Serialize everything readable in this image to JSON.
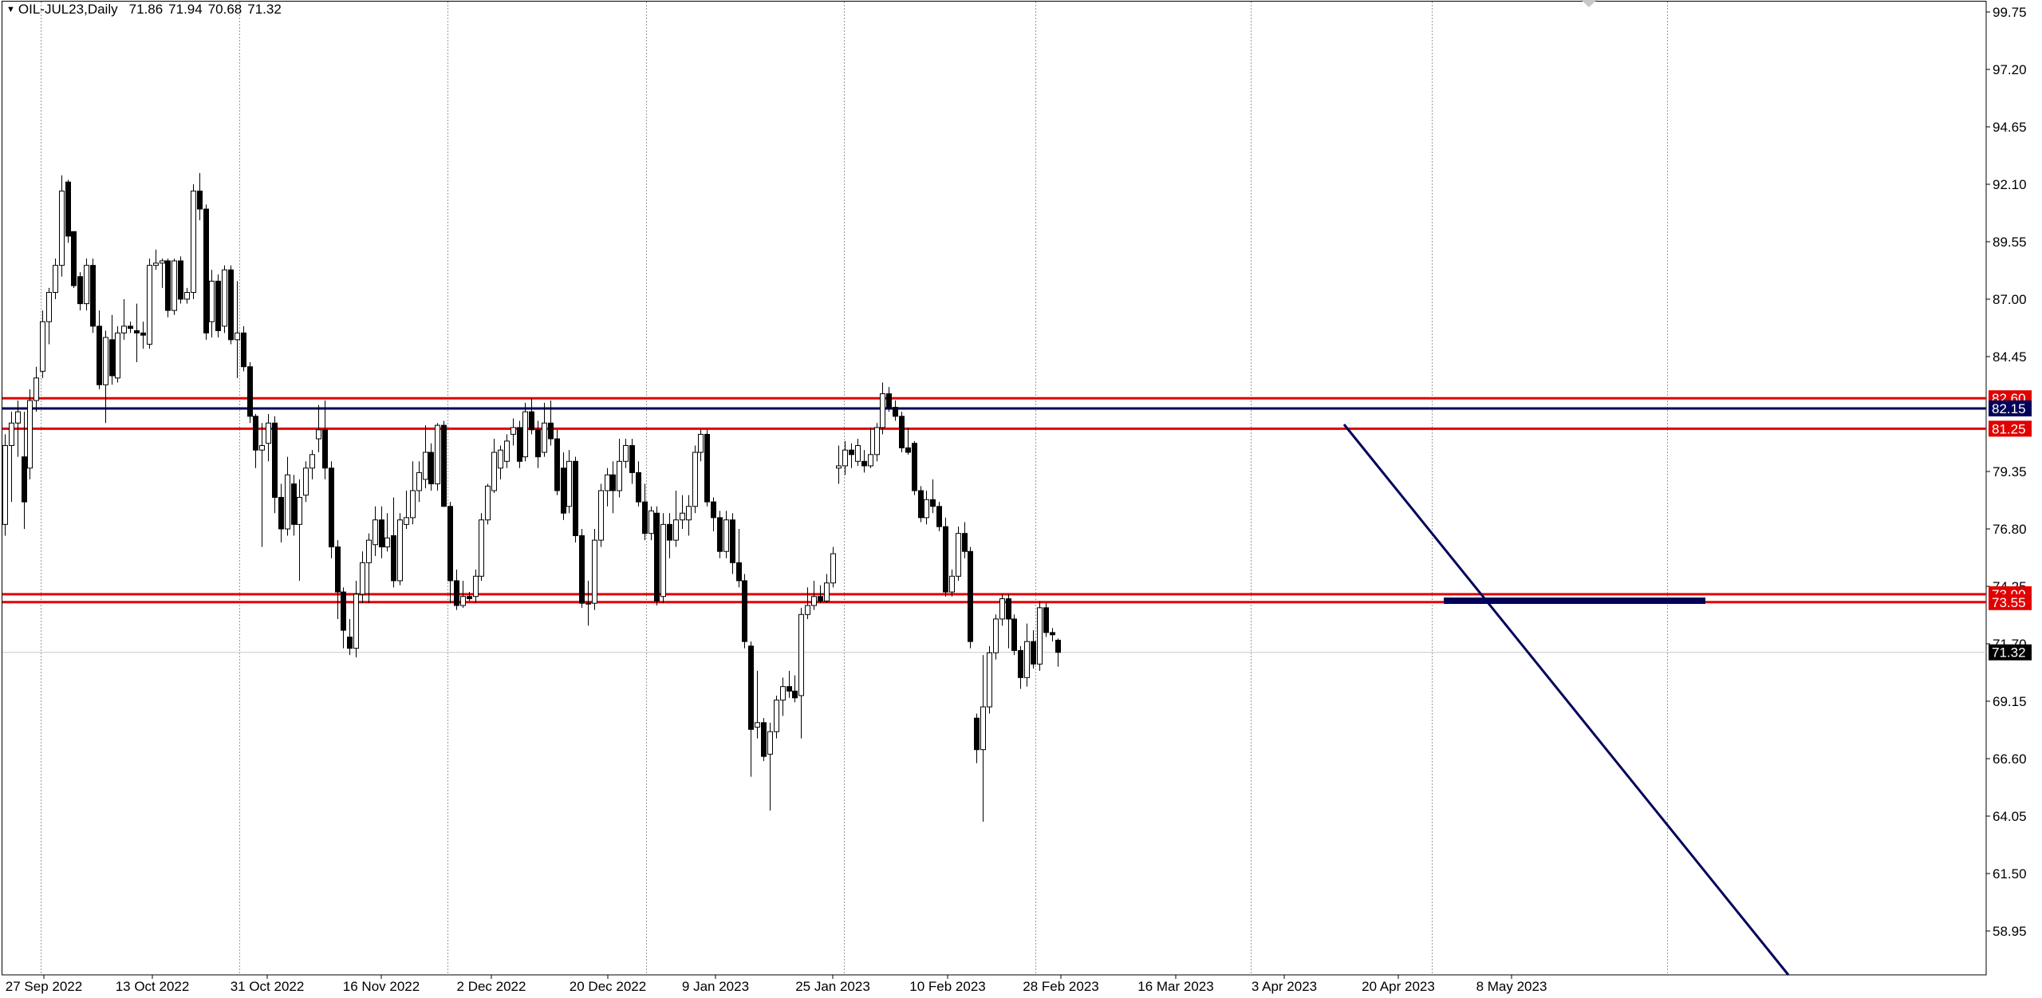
{
  "header": {
    "symbol": "OIL-JUL23,Daily",
    "open": "71.86",
    "high": "71.94",
    "low": "70.68",
    "close": "71.32"
  },
  "colors": {
    "background": "#ffffff",
    "bull_body": "#ffffff",
    "bear_body": "#000000",
    "wick": "#000000",
    "support_resistance": "#e00000",
    "navy": "#00005a",
    "grid": "#9a9a9a",
    "current_price_line": "#c8c8c8"
  },
  "chart_data": {
    "type": "candlestick",
    "title": "",
    "y_tick_labels": [
      "99.75",
      "97.20",
      "94.65",
      "92.10",
      "89.55",
      "87.00",
      "84.45",
      "79.35",
      "76.80",
      "74.25",
      "71.70",
      "69.15",
      "66.60",
      "64.05",
      "61.50",
      "58.95"
    ],
    "x_tick_labels": [
      "27 Sep 2022",
      "13 Oct 2022",
      "31 Oct 2022",
      "16 Nov 2022",
      "2 Dec 2022",
      "20 Dec 2022",
      "9 Jan 2023",
      "25 Jan 2023",
      "10 Feb 2023",
      "28 Feb 2023",
      "16 Mar 2023",
      "3 Apr 2023",
      "20 Apr 2023",
      "8 May 2023"
    ],
    "price_labels": [
      {
        "text": "82.60",
        "role": "resistance",
        "color": "#e00000"
      },
      {
        "text": "82.15",
        "role": "level",
        "color": "#00005a"
      },
      {
        "text": "81.25",
        "role": "resistance",
        "color": "#e00000"
      },
      {
        "text": "73.90",
        "role": "support",
        "color": "#e00000"
      },
      {
        "text": "73.55",
        "role": "support",
        "color": "#e00000"
      },
      {
        "text": "71.32",
        "role": "current",
        "color": "#000000"
      }
    ],
    "ohlc": [
      [
        77,
        81,
        76.5,
        80.5
      ],
      [
        80.5,
        82,
        78,
        81.5
      ],
      [
        81.5,
        82.5,
        80,
        82
      ],
      [
        80,
        82,
        76.8,
        78
      ],
      [
        79.5,
        83,
        79,
        82.5
      ],
      [
        82.5,
        84,
        82,
        83.5
      ],
      [
        83.8,
        86.5,
        83.5,
        86
      ],
      [
        86,
        87.5,
        85,
        87.3
      ],
      [
        87.3,
        88.8,
        87,
        88.5
      ],
      [
        88.5,
        92.5,
        88,
        91.8
      ],
      [
        92.2,
        92.3,
        89.5,
        89.8
      ],
      [
        90,
        90,
        87.5,
        87.6
      ],
      [
        88,
        88.2,
        86.5,
        86.8
      ],
      [
        86.8,
        88.8,
        86.5,
        88.5
      ],
      [
        88.5,
        88.8,
        85.5,
        85.8
      ],
      [
        85.8,
        86.5,
        83,
        83.2
      ],
      [
        83.2,
        85.6,
        81.5,
        85.3
      ],
      [
        85.2,
        86.3,
        83.2,
        83.6
      ],
      [
        83.5,
        85.8,
        83.3,
        85.5
      ],
      [
        85.5,
        87,
        85.2,
        85.8
      ],
      [
        85.8,
        86,
        85.5,
        85.7
      ],
      [
        85.6,
        86.8,
        84.2,
        85.5
      ],
      [
        85.5,
        86,
        84.8,
        85.4
      ],
      [
        85,
        88.8,
        84.8,
        88.5
      ],
      [
        88.5,
        89.2,
        88.3,
        88.6
      ],
      [
        88.6,
        88.8,
        87.5,
        88.7
      ],
      [
        88.7,
        88.8,
        86.2,
        86.5
      ],
      [
        86.5,
        88.8,
        86.3,
        88.7
      ],
      [
        88.7,
        88.9,
        86.8,
        87
      ],
      [
        87,
        87.5,
        86.8,
        87.3
      ],
      [
        87.3,
        92.1,
        87,
        91.8
      ],
      [
        91.8,
        92.6,
        90.5,
        91
      ],
      [
        91,
        91.2,
        85.2,
        85.5
      ],
      [
        86,
        88.3,
        85.3,
        87.8
      ],
      [
        87.8,
        88.1,
        85.3,
        85.6
      ],
      [
        85.8,
        88.5,
        85.5,
        88.3
      ],
      [
        88.3,
        88.5,
        85,
        85.2
      ],
      [
        85.2,
        87.8,
        83.5,
        85.5
      ],
      [
        85.5,
        85.8,
        83.8,
        84
      ],
      [
        84,
        84.2,
        81.5,
        81.8
      ],
      [
        81.8,
        81.9,
        79.5,
        80.3
      ],
      [
        80.3,
        81.5,
        76,
        80.5
      ],
      [
        80.6,
        81.9,
        79.8,
        81.5
      ],
      [
        81.5,
        81.8,
        77.5,
        78.2
      ],
      [
        78.2,
        78.8,
        76.2,
        76.8
      ],
      [
        76.8,
        80,
        76.5,
        79.2
      ],
      [
        78.8,
        79.2,
        76.5,
        77
      ],
      [
        77,
        79,
        74.5,
        78.2
      ],
      [
        78.3,
        79.8,
        78,
        79.5
      ],
      [
        79.5,
        80.3,
        79,
        80.1
      ],
      [
        80.8,
        82.3,
        80.2,
        81.2
      ],
      [
        81.2,
        82.5,
        79,
        79.5
      ],
      [
        79.5,
        79.8,
        75.5,
        76
      ],
      [
        76,
        76.3,
        72.8,
        74
      ],
      [
        74,
        74.2,
        71.5,
        72.3
      ],
      [
        72,
        72.8,
        71.2,
        71.5
      ],
      [
        71.5,
        74.5,
        71.1,
        73.9
      ],
      [
        73.9,
        75.8,
        73.5,
        75.3
      ],
      [
        75.3,
        76.6,
        73.5,
        76.3
      ],
      [
        76.1,
        77.8,
        75.6,
        77.2
      ],
      [
        77.2,
        77.8,
        75.5,
        76
      ],
      [
        76,
        77.5,
        75.8,
        76.4
      ],
      [
        76.5,
        78.2,
        74.2,
        74.5
      ],
      [
        74.5,
        77.5,
        74.3,
        77.2
      ],
      [
        77,
        78.5,
        76.8,
        77.3
      ],
      [
        77.3,
        79.8,
        77,
        78.5
      ],
      [
        78.5,
        79.8,
        78,
        79.3
      ],
      [
        79,
        81.4,
        78.6,
        80.2
      ],
      [
        80.2,
        80.6,
        78.5,
        78.8
      ],
      [
        78.8,
        81.5,
        78.5,
        81.4
      ],
      [
        81.4,
        81.6,
        77.8,
        77.8
      ],
      [
        77.8,
        78,
        73.5,
        74.5
      ],
      [
        74.5,
        75,
        73.2,
        73.4
      ],
      [
        73.4,
        74.5,
        73.3,
        73.8
      ],
      [
        73.8,
        74,
        73.6,
        73.7
      ],
      [
        73.8,
        75,
        73.5,
        74.7
      ],
      [
        74.7,
        77.5,
        74.5,
        77.2
      ],
      [
        77.2,
        78.8,
        77,
        78.7
      ],
      [
        78.5,
        80.8,
        78.4,
        80.2
      ],
      [
        79.5,
        80.5,
        79,
        80.3
      ],
      [
        79.8,
        81,
        79.5,
        80.7
      ],
      [
        81,
        81.7,
        80.5,
        81.3
      ],
      [
        81.3,
        81.6,
        79.5,
        79.8
      ],
      [
        80,
        82.4,
        79.8,
        82
      ],
      [
        82,
        82.6,
        81,
        81.2
      ],
      [
        81.2,
        81.6,
        79.5,
        80
      ],
      [
        80.2,
        82.4,
        80,
        81.5
      ],
      [
        81.5,
        82.5,
        80.5,
        80.8
      ],
      [
        80.8,
        81.2,
        78.3,
        78.5
      ],
      [
        79.5,
        80.2,
        77.2,
        77.5
      ],
      [
        77.8,
        80.3,
        77.5,
        79.8
      ],
      [
        79.8,
        80,
        76.2,
        76.5
      ],
      [
        76.5,
        76.8,
        73.3,
        73.5
      ],
      [
        73.5,
        74.5,
        72.5,
        73.5
      ],
      [
        73.5,
        76.8,
        73.2,
        76.3
      ],
      [
        76.3,
        78.8,
        76,
        78.5
      ],
      [
        78.5,
        79.5,
        77.8,
        79.2
      ],
      [
        79.2,
        79.8,
        77.5,
        78.5
      ],
      [
        78.5,
        80.8,
        78.2,
        79.8
      ],
      [
        79.8,
        80.8,
        79.5,
        80.5
      ],
      [
        80.5,
        80.8,
        78.8,
        79.3
      ],
      [
        79.3,
        79.8,
        77.8,
        78
      ],
      [
        78,
        78.8,
        76.3,
        76.6
      ],
      [
        76.6,
        77.8,
        76.3,
        77.6
      ],
      [
        77.5,
        77.8,
        73.4,
        73.6
      ],
      [
        73.8,
        77.5,
        73.5,
        77
      ],
      [
        77,
        77.5,
        75.5,
        76.3
      ],
      [
        76.3,
        78.5,
        76,
        77.2
      ],
      [
        77.2,
        78.3,
        76.8,
        77.5
      ],
      [
        77.2,
        78.3,
        76.5,
        77.8
      ],
      [
        77.8,
        80.5,
        77.5,
        80.2
      ],
      [
        80.2,
        81.2,
        79.8,
        81
      ],
      [
        81,
        81.2,
        77.8,
        78
      ],
      [
        78,
        78.2,
        76.7,
        77.3
      ],
      [
        77.3,
        77.6,
        75.5,
        75.8
      ],
      [
        75.8,
        77.6,
        75.5,
        77.2
      ],
      [
        77.2,
        77.5,
        74.8,
        75.3
      ],
      [
        75.3,
        76.8,
        74.2,
        74.5
      ],
      [
        74.5,
        74.8,
        71.5,
        71.8
      ],
      [
        71.6,
        71.8,
        65.8,
        67.9
      ],
      [
        68,
        70.5,
        67.5,
        68.2
      ],
      [
        68.2,
        68.4,
        66.5,
        66.7
      ],
      [
        66.8,
        68.2,
        64.3,
        67.8
      ],
      [
        67.8,
        69.4,
        67.5,
        69.2
      ],
      [
        69.2,
        70.2,
        68.5,
        69.8
      ],
      [
        69.8,
        70.5,
        69.3,
        69.6
      ],
      [
        69.6,
        70.3,
        69.1,
        69.3
      ],
      [
        69.4,
        73.3,
        67.5,
        73
      ],
      [
        73,
        74.2,
        72.8,
        73.4
      ],
      [
        73.4,
        74.5,
        73.2,
        73.8
      ],
      [
        73.8,
        74.3,
        73.5,
        73.6
      ],
      [
        73.6,
        74.8,
        73.5,
        74.4
      ],
      [
        74.4,
        76,
        74.2,
        75.7
      ],
      [
        79.5,
        80.5,
        78.8,
        79.6
      ],
      [
        79.6,
        80.7,
        79.2,
        80.3
      ],
      [
        80.3,
        80.6,
        79.5,
        80.1
      ],
      [
        79.8,
        80.8,
        79.6,
        80.5
      ],
      [
        79.8,
        80.3,
        79.3,
        79.6
      ],
      [
        79.6,
        81.3,
        79.5,
        80.1
      ],
      [
        80.1,
        81.5,
        79.8,
        81.3
      ],
      [
        81.3,
        83.3,
        81,
        82.8
      ],
      [
        82.8,
        83.1,
        82,
        82.2
      ],
      [
        82.2,
        82.5,
        81.6,
        81.8
      ],
      [
        81.8,
        82,
        80.2,
        80.4
      ],
      [
        80.4,
        81.3,
        80.1,
        80.2
      ],
      [
        80.6,
        80.7,
        78.3,
        78.5
      ],
      [
        78.5,
        78.7,
        77.1,
        77.3
      ],
      [
        77.3,
        78.5,
        77,
        78.1
      ],
      [
        78.1,
        79,
        77.5,
        77.8
      ],
      [
        77.8,
        78,
        76.7,
        76.9
      ],
      [
        76.9,
        77.3,
        73.8,
        74
      ],
      [
        74,
        75,
        73.8,
        74.7
      ],
      [
        74.7,
        76.9,
        74.5,
        76.6
      ],
      [
        76.6,
        77.1,
        75.5,
        75.8
      ],
      [
        75.8,
        76,
        71.5,
        71.8
      ],
      [
        68.4,
        68.6,
        66.4,
        67
      ],
      [
        67,
        71.2,
        63.8,
        68.9
      ],
      [
        68.9,
        71.6,
        68.6,
        71.3
      ],
      [
        71.3,
        73,
        71,
        72.8
      ],
      [
        72.8,
        73.9,
        72.5,
        73.7
      ],
      [
        73.7,
        73.9,
        71.5,
        72.8
      ],
      [
        72.8,
        73,
        71.2,
        71.4
      ],
      [
        71.4,
        71.6,
        69.7,
        70.2
      ],
      [
        70.2,
        72.6,
        69.8,
        71.8
      ],
      [
        71.8,
        72.3,
        70.6,
        70.8
      ],
      [
        70.8,
        73.6,
        70.5,
        73.3
      ],
      [
        73.3,
        73.5,
        72,
        72.2
      ],
      [
        72.2,
        72.4,
        71.8,
        72.1
      ],
      [
        71.86,
        71.94,
        70.68,
        71.32
      ]
    ]
  }
}
